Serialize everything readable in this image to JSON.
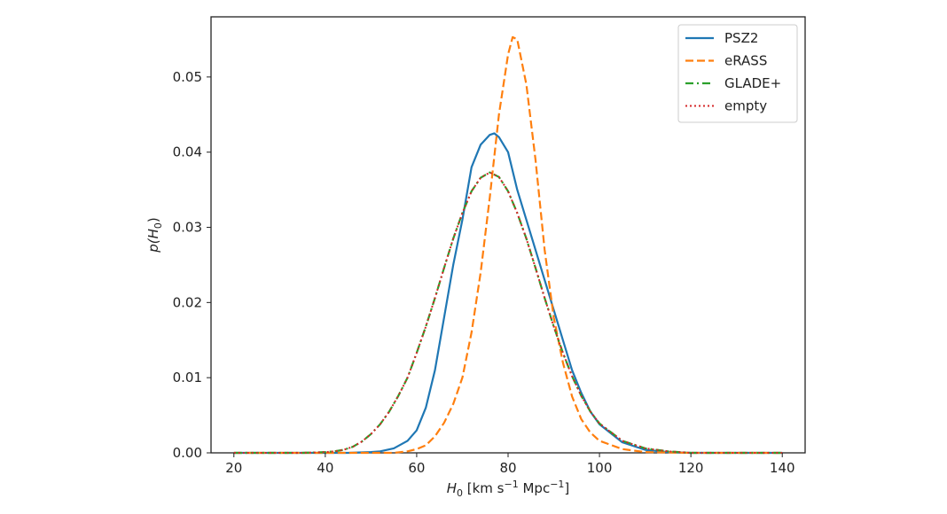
{
  "chart_data": {
    "type": "line",
    "xlabel": {
      "main": "H",
      "sub": "0",
      "unit_prefix": " [km s",
      "unit_sup1": "−1",
      "unit_mid": " Mpc",
      "unit_sup2": "−1",
      "unit_suffix": "]"
    },
    "ylabel": {
      "pre": "p(",
      "main": "H",
      "sub": "0",
      "post": ")"
    },
    "xlim": [
      15,
      145
    ],
    "ylim": [
      0,
      0.058
    ],
    "xticks": [
      20,
      40,
      60,
      80,
      100,
      120,
      140
    ],
    "yticks": [
      0.0,
      0.01,
      0.02,
      0.03,
      0.04,
      0.05
    ],
    "xtick_labels": [
      "20",
      "40",
      "60",
      "80",
      "100",
      "120",
      "140"
    ],
    "ytick_labels": [
      "0.00",
      "0.01",
      "0.02",
      "0.03",
      "0.04",
      "0.05"
    ],
    "grid": false,
    "legend_position": "top-right",
    "series": [
      {
        "name": "PSZ2",
        "color": "#1f77b4",
        "dash": "solid",
        "x": [
          20,
          30,
          40,
          45,
          50,
          52,
          55,
          58,
          60,
          62,
          64,
          66,
          68,
          70,
          72,
          74,
          76,
          77,
          78,
          80,
          82,
          84,
          86,
          88,
          90,
          92,
          94,
          96,
          98,
          100,
          105,
          110,
          115,
          120,
          130,
          140
        ],
        "y": [
          0,
          0,
          0,
          0,
          0.0001,
          0.0002,
          0.0006,
          0.0016,
          0.003,
          0.006,
          0.011,
          0.018,
          0.025,
          0.031,
          0.038,
          0.041,
          0.0423,
          0.0425,
          0.042,
          0.04,
          0.035,
          0.031,
          0.027,
          0.023,
          0.019,
          0.015,
          0.011,
          0.008,
          0.0055,
          0.0038,
          0.0014,
          0.0004,
          0.0001,
          0,
          0,
          0
        ]
      },
      {
        "name": "eRASS",
        "color": "#ff7f0e",
        "dash": "dashed",
        "x": [
          20,
          40,
          55,
          58,
          60,
          62,
          64,
          66,
          68,
          70,
          72,
          74,
          76,
          78,
          80,
          81,
          82,
          84,
          86,
          88,
          90,
          92,
          94,
          96,
          98,
          100,
          105,
          110,
          120,
          140
        ],
        "y": [
          0,
          0,
          0,
          0.0002,
          0.0005,
          0.001,
          0.0022,
          0.004,
          0.0065,
          0.01,
          0.016,
          0.024,
          0.034,
          0.045,
          0.053,
          0.0553,
          0.055,
          0.049,
          0.039,
          0.027,
          0.018,
          0.012,
          0.0075,
          0.0045,
          0.0027,
          0.0016,
          0.0005,
          0.0001,
          0,
          0
        ]
      },
      {
        "name": "GLADE+",
        "color": "#2ca02c",
        "dash": "dashdot",
        "x": [
          20,
          35,
          40,
          42,
          44,
          46,
          48,
          50,
          52,
          54,
          56,
          58,
          60,
          62,
          64,
          66,
          68,
          70,
          72,
          74,
          76,
          78,
          80,
          82,
          84,
          86,
          88,
          90,
          92,
          94,
          96,
          98,
          100,
          105,
          110,
          115,
          120,
          130,
          140
        ],
        "y": [
          0,
          0,
          0.0001,
          0.0002,
          0.0004,
          0.0008,
          0.0015,
          0.0025,
          0.0038,
          0.0055,
          0.0076,
          0.01,
          0.0133,
          0.0168,
          0.0206,
          0.0246,
          0.0285,
          0.0319,
          0.0348,
          0.0366,
          0.0373,
          0.0367,
          0.0348,
          0.0319,
          0.0285,
          0.0246,
          0.0206,
          0.0168,
          0.0133,
          0.0102,
          0.0076,
          0.0055,
          0.0039,
          0.0016,
          0.0006,
          0.0002,
          0,
          0,
          0
        ]
      },
      {
        "name": "empty",
        "color": "#d62728",
        "dash": "dotted",
        "x": [
          20,
          35,
          40,
          42,
          44,
          46,
          48,
          50,
          52,
          54,
          56,
          58,
          60,
          62,
          64,
          66,
          68,
          70,
          72,
          74,
          76,
          78,
          80,
          82,
          84,
          86,
          88,
          90,
          92,
          94,
          96,
          98,
          100,
          105,
          110,
          115,
          120,
          130,
          140
        ],
        "y": [
          0,
          0,
          0.0001,
          0.0002,
          0.0004,
          0.0008,
          0.0015,
          0.0025,
          0.0038,
          0.0055,
          0.0076,
          0.01,
          0.0133,
          0.0168,
          0.0206,
          0.0246,
          0.0285,
          0.0319,
          0.0348,
          0.0366,
          0.0373,
          0.0367,
          0.0348,
          0.0319,
          0.0285,
          0.0246,
          0.0206,
          0.0168,
          0.0133,
          0.0102,
          0.0076,
          0.0055,
          0.0039,
          0.0016,
          0.0006,
          0.0002,
          0,
          0,
          0
        ]
      }
    ]
  }
}
